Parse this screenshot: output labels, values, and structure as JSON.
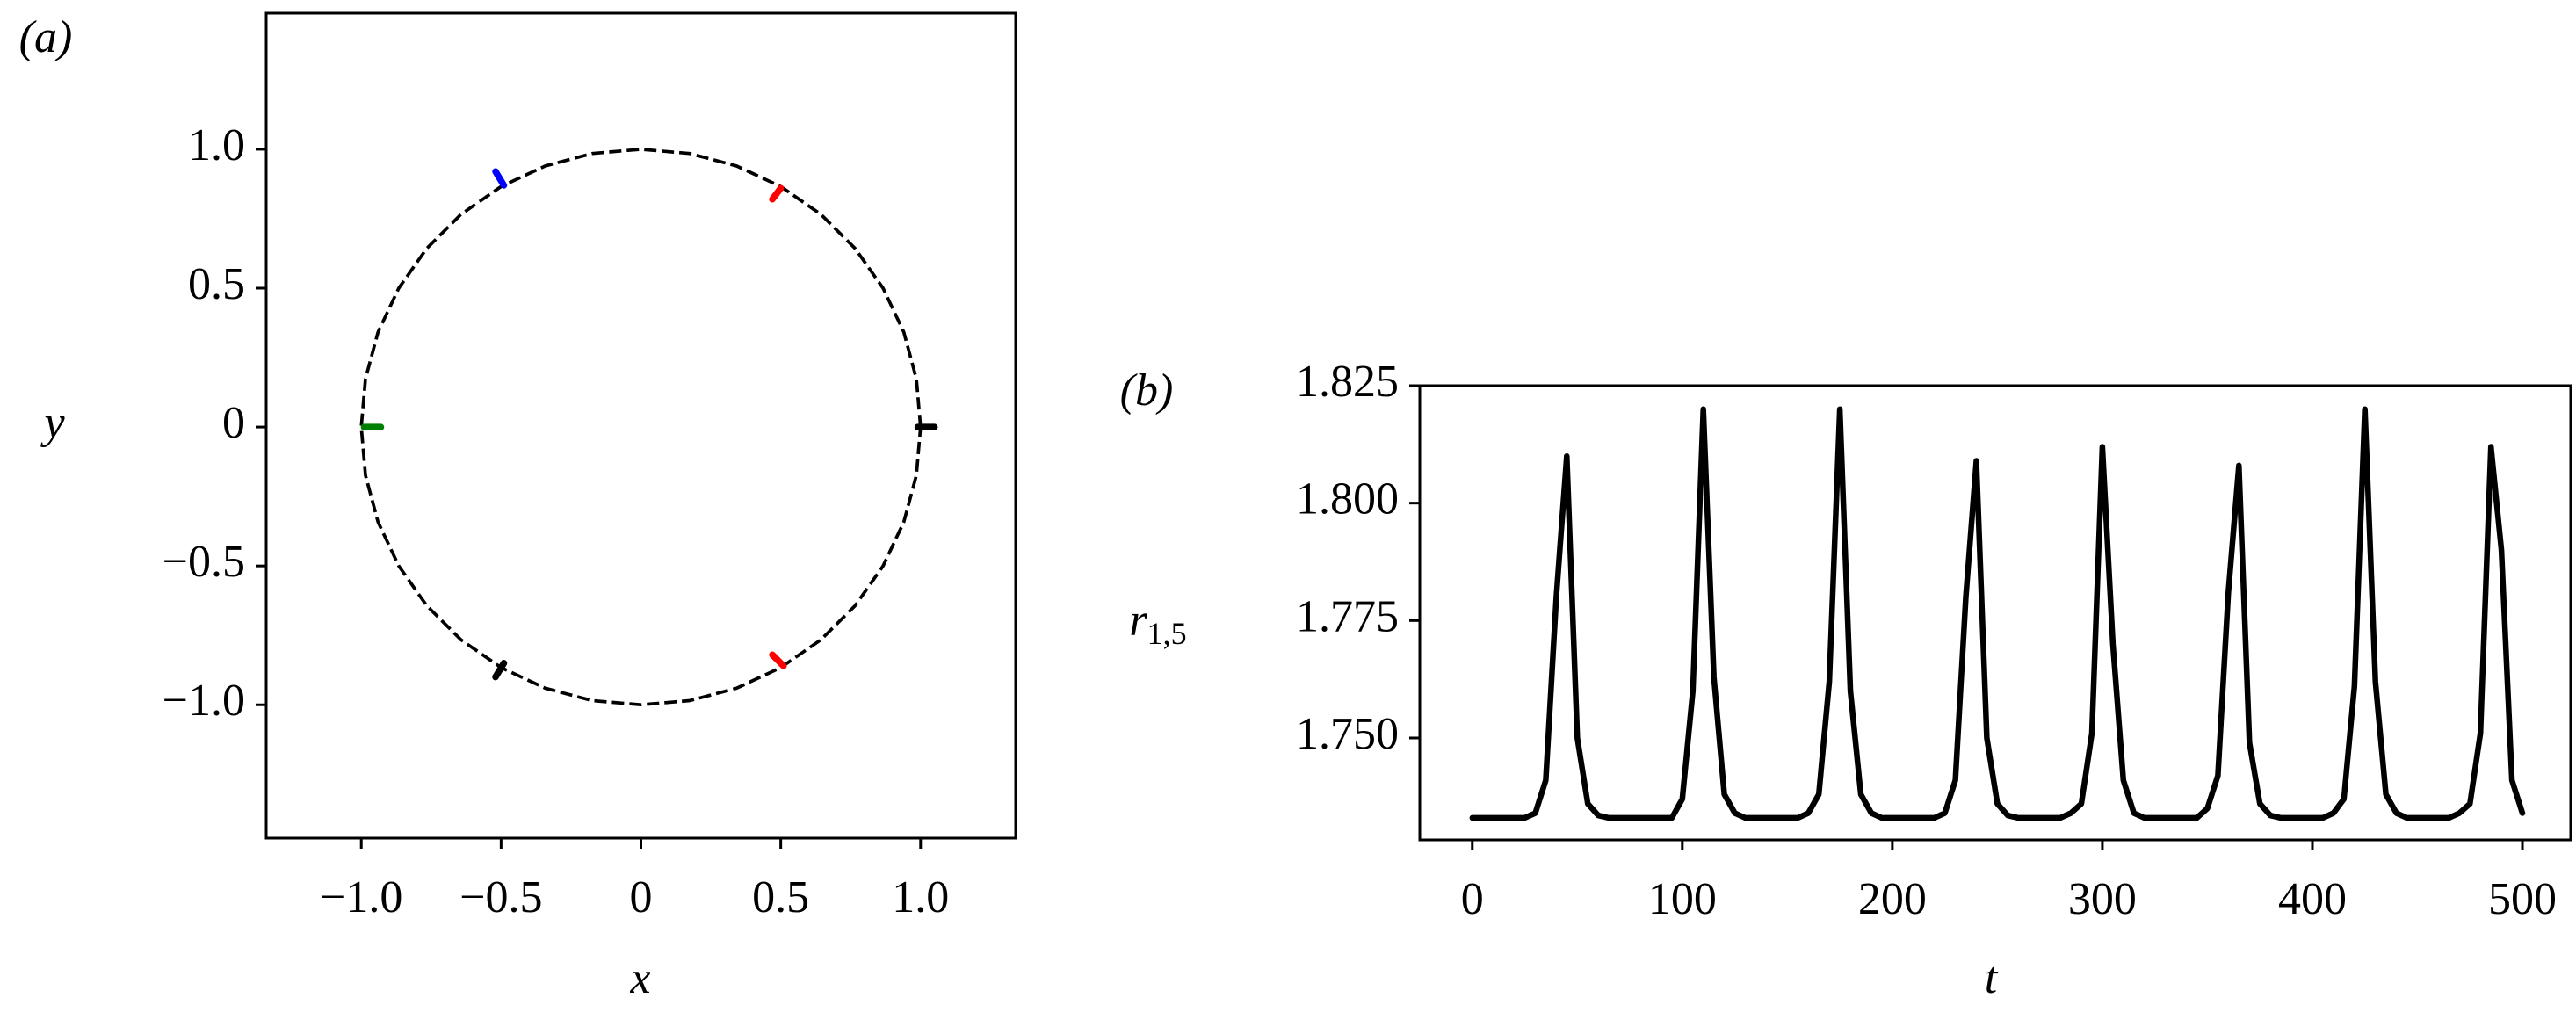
{
  "chart_data": [
    {
      "type": "line",
      "title": "(a)",
      "xlabel": "x",
      "ylabel": "y",
      "xlim": [
        -1.34,
        1.34
      ],
      "ylim": [
        -1.48,
        1.49
      ],
      "xticks": [
        {
          "value": -1,
          "label": "−1.0"
        },
        {
          "value": -0.5,
          "label": "−0.5"
        },
        0,
        0.5,
        {
          "value": 1,
          "label": "1.0"
        }
      ],
      "yticks": [
        {
          "value": -1,
          "label": "−1.0"
        },
        {
          "value": -0.5,
          "label": "−0.5"
        },
        0,
        0.5,
        {
          "value": 1,
          "label": "1.0"
        }
      ],
      "series": [
        {
          "color": "#000000",
          "style": "dashed",
          "x": [
            1,
            0.985,
            0.94,
            0.866,
            0.766,
            0.643,
            0.5,
            0.342,
            0.174,
            0,
            -0.174,
            -0.342,
            -0.5,
            -0.643,
            -0.766,
            -0.866,
            -0.94,
            -0.985,
            -1,
            -0.985,
            -0.94,
            -0.866,
            -0.766,
            -0.643,
            -0.5,
            -0.342,
            -0.174,
            0,
            0.174,
            0.342,
            0.5,
            0.643,
            0.766,
            0.866,
            0.94,
            0.985,
            1
          ],
          "values": [
            0,
            0.174,
            0.342,
            0.5,
            0.643,
            0.766,
            0.866,
            0.94,
            0.985,
            1,
            0.985,
            0.94,
            0.866,
            0.766,
            0.643,
            0.5,
            0.342,
            0.174,
            0,
            -0.174,
            -0.342,
            -0.5,
            -0.643,
            -0.766,
            -0.866,
            -0.94,
            -0.985,
            -1,
            -0.985,
            -0.94,
            -0.866,
            -0.766,
            -0.643,
            -0.5,
            -0.342,
            -0.174,
            0
          ]
        },
        {
          "color": "#0000ff",
          "style": "solid",
          "x": [
            -0.52,
            -0.49
          ],
          "values": [
            0.92,
            0.87
          ]
        },
        {
          "color": "#ff0000",
          "style": "solid",
          "x": [
            0.47,
            0.5
          ],
          "values": [
            0.82,
            0.86
          ]
        },
        {
          "color": "#008000",
          "style": "solid",
          "x": [
            -0.99,
            -0.93
          ],
          "values": [
            0,
            0
          ]
        },
        {
          "color": "#000000",
          "style": "solid",
          "x": [
            0.99,
            1.05
          ],
          "values": [
            0,
            0
          ]
        },
        {
          "color": "#000000",
          "style": "solid",
          "x": [
            -0.52,
            -0.49
          ],
          "values": [
            -0.9,
            -0.85
          ]
        },
        {
          "color": "#ff0000",
          "style": "solid",
          "x": [
            0.47,
            0.51
          ],
          "values": [
            -0.82,
            -0.86
          ]
        }
      ]
    },
    {
      "type": "line",
      "title": "(b)",
      "xlabel": "t",
      "ylabel": "r",
      "ylabel_sub": "1,5",
      "xlim": [
        -25,
        523
      ],
      "ylim": [
        1.7283,
        1.825
      ],
      "xticks": [
        0,
        100,
        200,
        300,
        400,
        500
      ],
      "yticks": [
        {
          "value": 1.75,
          "label": "1.750"
        },
        1.775,
        {
          "value": 1.8,
          "label": "1.800"
        },
        1.825
      ],
      "series": [
        {
          "color": "#000000",
          "style": "solid",
          "x": [
            0,
            5,
            10,
            15,
            20,
            25,
            30,
            35,
            40,
            45,
            50,
            55,
            60,
            65,
            70,
            75,
            80,
            85,
            90,
            95,
            100,
            105,
            110,
            115,
            120,
            125,
            130,
            135,
            140,
            145,
            150,
            155,
            160,
            165,
            170,
            175,
            180,
            185,
            190,
            195,
            200,
            205,
            210,
            215,
            220,
            225,
            230,
            235,
            240,
            245,
            250,
            255,
            260,
            265,
            270,
            275,
            280,
            285,
            290,
            295,
            300,
            305,
            310,
            315,
            320,
            325,
            330,
            335,
            340,
            345,
            350,
            355,
            360,
            365,
            370,
            375,
            380,
            385,
            390,
            395,
            400,
            405,
            410,
            415,
            420,
            425,
            430,
            435,
            440,
            445,
            450,
            455,
            460,
            465,
            470,
            475,
            480,
            485,
            490,
            495,
            500
          ],
          "values": [
            1.733,
            1.733,
            1.733,
            1.733,
            1.733,
            1.733,
            1.734,
            1.741,
            1.78,
            1.81,
            1.75,
            1.736,
            1.7335,
            1.733,
            1.733,
            1.733,
            1.733,
            1.733,
            1.733,
            1.733,
            1.737,
            1.76,
            1.82,
            1.763,
            1.738,
            1.734,
            1.733,
            1.733,
            1.733,
            1.733,
            1.733,
            1.733,
            1.734,
            1.738,
            1.762,
            1.82,
            1.76,
            1.738,
            1.734,
            1.733,
            1.733,
            1.733,
            1.733,
            1.733,
            1.733,
            1.734,
            1.741,
            1.78,
            1.809,
            1.75,
            1.736,
            1.7335,
            1.733,
            1.733,
            1.733,
            1.733,
            1.733,
            1.734,
            1.736,
            1.751,
            1.812,
            1.77,
            1.741,
            1.734,
            1.733,
            1.733,
            1.733,
            1.733,
            1.733,
            1.733,
            1.735,
            1.742,
            1.781,
            1.808,
            1.749,
            1.736,
            1.7335,
            1.733,
            1.733,
            1.733,
            1.733,
            1.733,
            1.734,
            1.737,
            1.761,
            1.82,
            1.762,
            1.738,
            1.734,
            1.733,
            1.733,
            1.733,
            1.733,
            1.733,
            1.734,
            1.736,
            1.751,
            1.812,
            1.79,
            1.741,
            1.734
          ]
        }
      ]
    }
  ]
}
